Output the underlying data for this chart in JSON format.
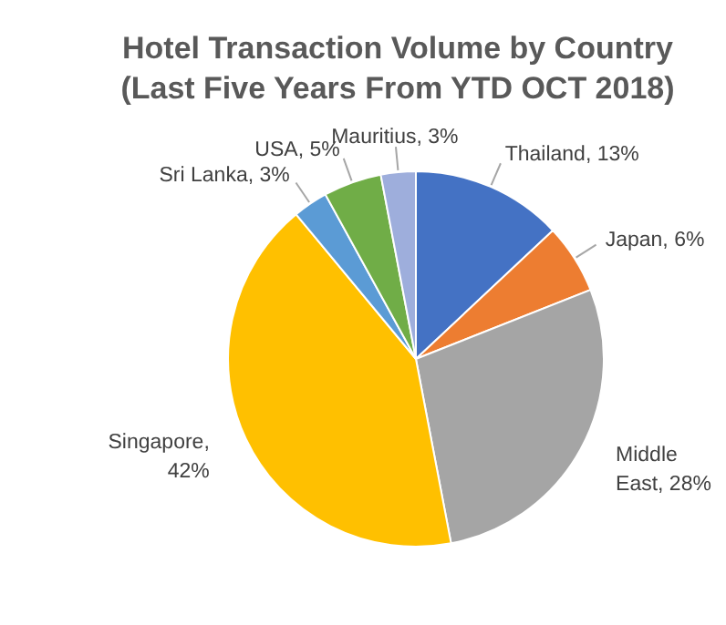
{
  "chart_data": {
    "type": "pie",
    "title": "Hotel Transaction Volume by Country (Last Five Years From YTD OCT 2018)",
    "categories": [
      "Thailand",
      "Japan",
      "Middle East",
      "Singapore",
      "Sri Lanka",
      "USA",
      "Mauritius"
    ],
    "values": [
      13,
      6,
      28,
      42,
      3,
      5,
      3
    ],
    "colors": [
      "#4472c4",
      "#ed7d31",
      "#a5a5a5",
      "#ffc000",
      "#5b9bd5",
      "#70ad47",
      "#9eaedc"
    ],
    "value_labels": [
      ", 13%",
      ", 6%",
      ", 28%",
      ", 42%",
      ", 3%",
      ", 5%",
      ", 3%"
    ]
  }
}
